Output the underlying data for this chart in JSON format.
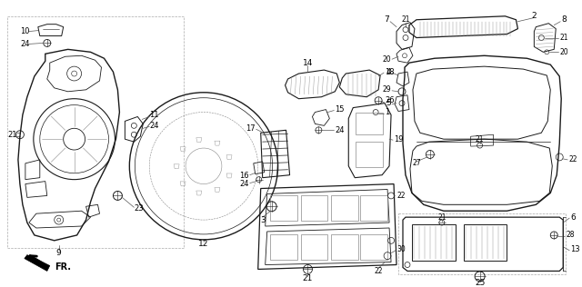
{
  "bg_color": "#ffffff",
  "lc": "#1a1a1a",
  "tc": "#000000",
  "fig_width": 6.4,
  "fig_height": 3.16,
  "dpi": 100,
  "gray": "#555555",
  "lgray": "#888888"
}
